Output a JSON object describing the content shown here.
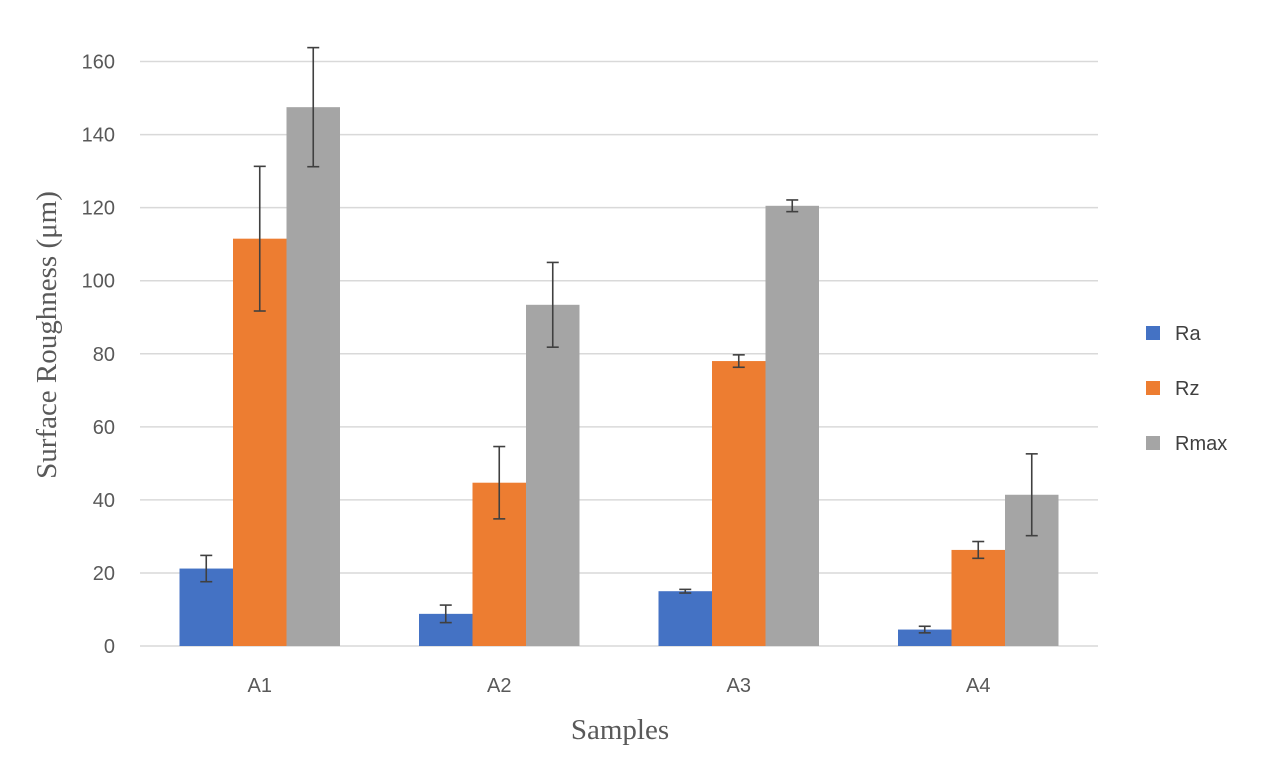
{
  "chart_data": {
    "type": "bar",
    "title": "",
    "xlabel": "Samples",
    "ylabel": "Surface Roughness (μm)",
    "categories": [
      "A1",
      "A2",
      "A3",
      "A4"
    ],
    "ylim": [
      0,
      160
    ],
    "yticks": [
      0,
      20,
      40,
      60,
      80,
      100,
      120,
      140,
      160
    ],
    "grid": true,
    "legend_position": "right",
    "series": [
      {
        "name": "Ra",
        "color": "#4472c4",
        "values": [
          21.2,
          8.8,
          15.0,
          4.5
        ],
        "errors": [
          3.6,
          2.4,
          0.5,
          0.9
        ]
      },
      {
        "name": "Rz",
        "color": "#ed7d31",
        "values": [
          111.5,
          44.7,
          78.0,
          26.3
        ],
        "errors": [
          19.8,
          9.9,
          1.7,
          2.3
        ]
      },
      {
        "name": "Rmax",
        "color": "#a5a5a5",
        "values": [
          147.5,
          93.4,
          120.5,
          41.4
        ],
        "errors": [
          16.3,
          11.6,
          1.6,
          11.2
        ]
      }
    ]
  }
}
